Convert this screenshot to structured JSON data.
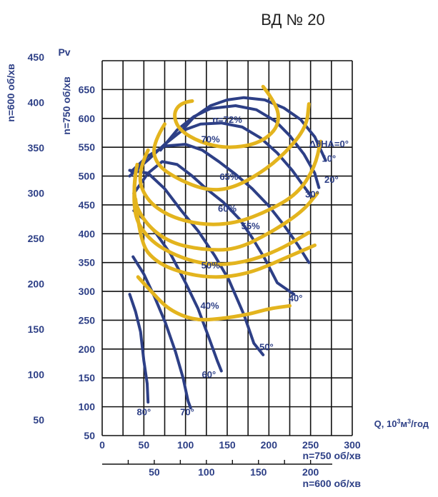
{
  "chart_data": {
    "type": "line",
    "title": "ВД № 20",
    "colors": {
      "grid": "#111111",
      "curve": "#2d3f86",
      "efficiency": "#e3b41e",
      "text": "#2d3f86",
      "title": "#222222"
    },
    "main_y_axis": {
      "label": "Pv",
      "ticks": [
        50,
        100,
        150,
        200,
        250,
        300,
        350,
        400,
        450,
        500,
        550,
        600,
        650
      ],
      "ylim": [
        50,
        700
      ]
    },
    "left_axes": [
      {
        "label": "n=600 об/хв",
        "ticks": [
          50,
          100,
          150,
          200,
          250,
          300,
          350,
          400,
          450
        ]
      },
      {
        "label": "n=750 об/хв"
      }
    ],
    "x_axes": [
      {
        "ticks": [
          0,
          50,
          100,
          150,
          200,
          250,
          300
        ],
        "label": "n=750 об/хв",
        "xlim": [
          0,
          300
        ]
      },
      {
        "ticks": [
          50,
          100,
          150,
          200
        ],
        "label": "n=600 об/хв"
      }
    ],
    "x_unit": {
      "prefix": "Q, 10",
      "sup1": "3",
      "mid": "м",
      "sup2": "3",
      "suffix": "/год"
    },
    "grid": true,
    "blade_angle_curves": [
      {
        "name": "ΔθНА=0°",
        "points": [
          [
            95,
            578
          ],
          [
            110,
            602
          ],
          [
            130,
            622
          ],
          [
            150,
            632
          ],
          [
            170,
            636
          ],
          [
            195,
            632
          ],
          [
            218,
            618
          ],
          [
            238,
            598
          ],
          [
            255,
            568
          ],
          [
            268,
            527
          ]
        ]
      },
      {
        "name": "10°",
        "points": [
          [
            70,
            545
          ],
          [
            90,
            580
          ],
          [
            110,
            603
          ],
          [
            130,
            617
          ],
          [
            160,
            622
          ],
          [
            185,
            615
          ],
          [
            208,
            595
          ],
          [
            225,
            570
          ],
          [
            242,
            538
          ],
          [
            255,
            505
          ],
          [
            260,
            480
          ]
        ]
      },
      {
        "name": "20°",
        "points": [
          [
            33,
            500
          ],
          [
            55,
            528
          ],
          [
            75,
            555
          ],
          [
            95,
            578
          ],
          [
            118,
            590
          ],
          [
            143,
            592
          ],
          [
            168,
            585
          ],
          [
            190,
            566
          ],
          [
            210,
            540
          ],
          [
            228,
            510
          ],
          [
            244,
            478
          ],
          [
            252,
            463
          ]
        ]
      },
      {
        "name": "30°",
        "points": [
          [
            35,
            508
          ],
          [
            55,
            535
          ],
          [
            75,
            552
          ],
          [
            100,
            555
          ],
          [
            120,
            545
          ],
          [
            140,
            525
          ],
          [
            160,
            503
          ],
          [
            180,
            478
          ],
          [
            200,
            448
          ],
          [
            218,
            415
          ],
          [
            235,
            380
          ],
          [
            248,
            350
          ]
        ]
      },
      {
        "name": "40°",
        "points": [
          [
            38,
            470
          ],
          [
            55,
            505
          ],
          [
            72,
            525
          ],
          [
            90,
            520
          ],
          [
            108,
            500
          ],
          [
            125,
            478
          ],
          [
            145,
            455
          ],
          [
            165,
            425
          ],
          [
            180,
            393
          ],
          [
            195,
            357
          ],
          [
            210,
            315
          ],
          [
            230,
            295
          ]
        ]
      },
      {
        "name": "50°",
        "points": [
          [
            33,
            510
          ],
          [
            55,
            505
          ],
          [
            75,
            478
          ],
          [
            95,
            440
          ],
          [
            115,
            405
          ],
          [
            135,
            362
          ],
          [
            152,
            320
          ],
          [
            170,
            260
          ],
          [
            182,
            210
          ],
          [
            193,
            190
          ]
        ]
      },
      {
        "name": "60°",
        "points": [
          [
            38,
            440
          ],
          [
            50,
            425
          ],
          [
            65,
            400
          ],
          [
            82,
            365
          ],
          [
            100,
            315
          ],
          [
            115,
            270
          ],
          [
            128,
            220
          ],
          [
            138,
            180
          ],
          [
            143,
            162
          ]
        ]
      },
      {
        "name": "70°",
        "points": [
          [
            37,
            360
          ],
          [
            50,
            330
          ],
          [
            63,
            290
          ],
          [
            76,
            245
          ],
          [
            88,
            195
          ],
          [
            97,
            150
          ],
          [
            103,
            110
          ],
          [
            106,
            98
          ]
        ]
      },
      {
        "name": "80°",
        "points": [
          [
            33,
            295
          ],
          [
            40,
            265
          ],
          [
            46,
            230
          ],
          [
            50,
            180
          ],
          [
            54,
            140
          ],
          [
            55,
            108
          ]
        ]
      }
    ],
    "efficiency_curves": [
      {
        "name": "η=72%",
        "points": [
          [
            108,
            630
          ],
          [
            95,
            628
          ],
          [
            85,
            608
          ],
          [
            92,
            580
          ],
          [
            118,
            558
          ],
          [
            150,
            548
          ],
          [
            185,
            555
          ],
          [
            208,
            578
          ],
          [
            213,
            608
          ],
          [
            202,
            638
          ],
          [
            193,
            655
          ]
        ]
      },
      {
        "name": "70%",
        "points": [
          [
            75,
            590
          ],
          [
            60,
            555
          ],
          [
            65,
            520
          ],
          [
            90,
            495
          ],
          [
            125,
            475
          ],
          [
            155,
            478
          ],
          [
            190,
            505
          ],
          [
            220,
            540
          ],
          [
            245,
            585
          ],
          [
            248,
            625
          ]
        ]
      },
      {
        "name": "65%",
        "points": [
          [
            55,
            545
          ],
          [
            42,
            505
          ],
          [
            52,
            460
          ],
          [
            80,
            430
          ],
          [
            120,
            415
          ],
          [
            160,
            418
          ],
          [
            200,
            440
          ],
          [
            235,
            470
          ],
          [
            255,
            515
          ],
          [
            262,
            560
          ]
        ]
      },
      {
        "name": "60%",
        "points": [
          [
            42,
            520
          ],
          [
            35,
            470
          ],
          [
            50,
            420
          ],
          [
            80,
            385
          ],
          [
            120,
            372
          ],
          [
            160,
            372
          ],
          [
            200,
            400
          ],
          [
            240,
            438
          ],
          [
            258,
            470
          ]
        ]
      },
      {
        "name": "55%",
        "points": [
          [
            40,
            500
          ],
          [
            35,
            440
          ],
          [
            55,
            390
          ],
          [
            90,
            360
          ],
          [
            130,
            345
          ],
          [
            170,
            350
          ],
          [
            210,
            370
          ],
          [
            248,
            402
          ]
        ]
      },
      {
        "name": "50%",
        "points": [
          [
            40,
            460
          ],
          [
            45,
            385
          ],
          [
            65,
            350
          ],
          [
            100,
            330
          ],
          [
            140,
            323
          ],
          [
            180,
            333
          ],
          [
            215,
            355
          ],
          [
            255,
            380
          ]
        ]
      },
      {
        "name": "40%",
        "points": [
          [
            43,
            325
          ],
          [
            60,
            298
          ],
          [
            80,
            268
          ],
          [
            110,
            250
          ],
          [
            140,
            252
          ],
          [
            175,
            260
          ],
          [
            200,
            270
          ],
          [
            225,
            275
          ]
        ]
      }
    ],
    "curve_labels": [
      {
        "text": "ΔθНА=0°",
        "x": 272,
        "y": 550
      },
      {
        "text": "10°",
        "x": 272,
        "y": 525
      },
      {
        "text": "20°",
        "x": 275,
        "y": 488
      },
      {
        "text": "30°",
        "x": 252,
        "y": 463
      },
      {
        "text": "40°",
        "x": 232,
        "y": 283
      },
      {
        "text": "50°",
        "x": 197,
        "y": 198
      },
      {
        "text": "60°",
        "x": 128,
        "y": 150
      },
      {
        "text": "70°",
        "x": 102,
        "y": 85
      },
      {
        "text": "80°",
        "x": 50,
        "y": 85
      },
      {
        "text": "η=72%",
        "x": 150,
        "y": 592
      },
      {
        "text": "70%",
        "x": 130,
        "y": 558
      },
      {
        "text": "65%",
        "x": 152,
        "y": 493
      },
      {
        "text": "60%",
        "x": 150,
        "y": 438
      },
      {
        "text": "55%",
        "x": 178,
        "y": 408
      },
      {
        "text": "50%",
        "x": 130,
        "y": 340
      },
      {
        "text": "40%",
        "x": 129,
        "y": 270
      }
    ]
  }
}
